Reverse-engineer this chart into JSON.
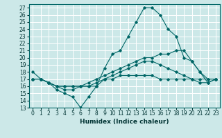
{
  "xlabel": "Humidex (Indice chaleur)",
  "background_color": "#cce8e8",
  "grid_color": "#ffffff",
  "line_color": "#006666",
  "xlim": [
    -0.5,
    23.5
  ],
  "ylim": [
    13,
    27.5
  ],
  "yticks": [
    13,
    14,
    15,
    16,
    17,
    18,
    19,
    20,
    21,
    22,
    23,
    24,
    25,
    26,
    27
  ],
  "xticks": [
    0,
    1,
    2,
    3,
    4,
    5,
    6,
    7,
    8,
    9,
    10,
    11,
    12,
    13,
    14,
    15,
    16,
    17,
    18,
    19,
    20,
    21,
    22,
    23
  ],
  "curves": [
    {
      "x": [
        0,
        1,
        2,
        3,
        4,
        5,
        6,
        7,
        8,
        9,
        10,
        11,
        12,
        13,
        14,
        15,
        16,
        17,
        18,
        19,
        20,
        21,
        22,
        23
      ],
      "y": [
        18,
        17,
        16.5,
        15.5,
        15,
        14.5,
        13,
        14.5,
        16,
        18.5,
        20.5,
        21,
        23,
        25,
        27,
        27,
        26,
        24,
        23,
        20,
        19.5,
        18,
        16.5,
        17
      ]
    },
    {
      "x": [
        0,
        1,
        2,
        3,
        4,
        5,
        6,
        7,
        8,
        9,
        10,
        11,
        12,
        13,
        14,
        15,
        16,
        17,
        18,
        19,
        20,
        21,
        22,
        23
      ],
      "y": [
        17,
        17,
        16.5,
        16,
        16,
        16,
        16,
        16.5,
        17,
        17.5,
        18,
        18.5,
        19,
        19.5,
        20,
        20,
        20.5,
        20.5,
        21,
        21,
        19.5,
        18,
        17,
        17
      ]
    },
    {
      "x": [
        0,
        1,
        2,
        3,
        4,
        5,
        6,
        7,
        8,
        9,
        10,
        11,
        12,
        13,
        14,
        15,
        16,
        17,
        18,
        19,
        20,
        21,
        22,
        23
      ],
      "y": [
        17,
        17,
        16.5,
        16,
        16,
        16,
        16,
        16,
        16.5,
        17,
        17,
        17.5,
        17.5,
        17.5,
        17.5,
        17.5,
        17,
        17,
        17,
        17,
        17,
        17,
        17,
        17
      ]
    },
    {
      "x": [
        0,
        1,
        2,
        3,
        4,
        5,
        6,
        7,
        8,
        9,
        10,
        11,
        12,
        13,
        14,
        15,
        16,
        17,
        18,
        19,
        20,
        21,
        22,
        23
      ],
      "y": [
        17,
        17,
        16.5,
        16,
        15.5,
        15.5,
        16,
        16,
        16,
        17,
        17.5,
        18,
        18.5,
        19,
        19.5,
        19.5,
        19,
        18.5,
        18,
        17.5,
        17,
        16.5,
        16.5,
        17
      ]
    }
  ]
}
